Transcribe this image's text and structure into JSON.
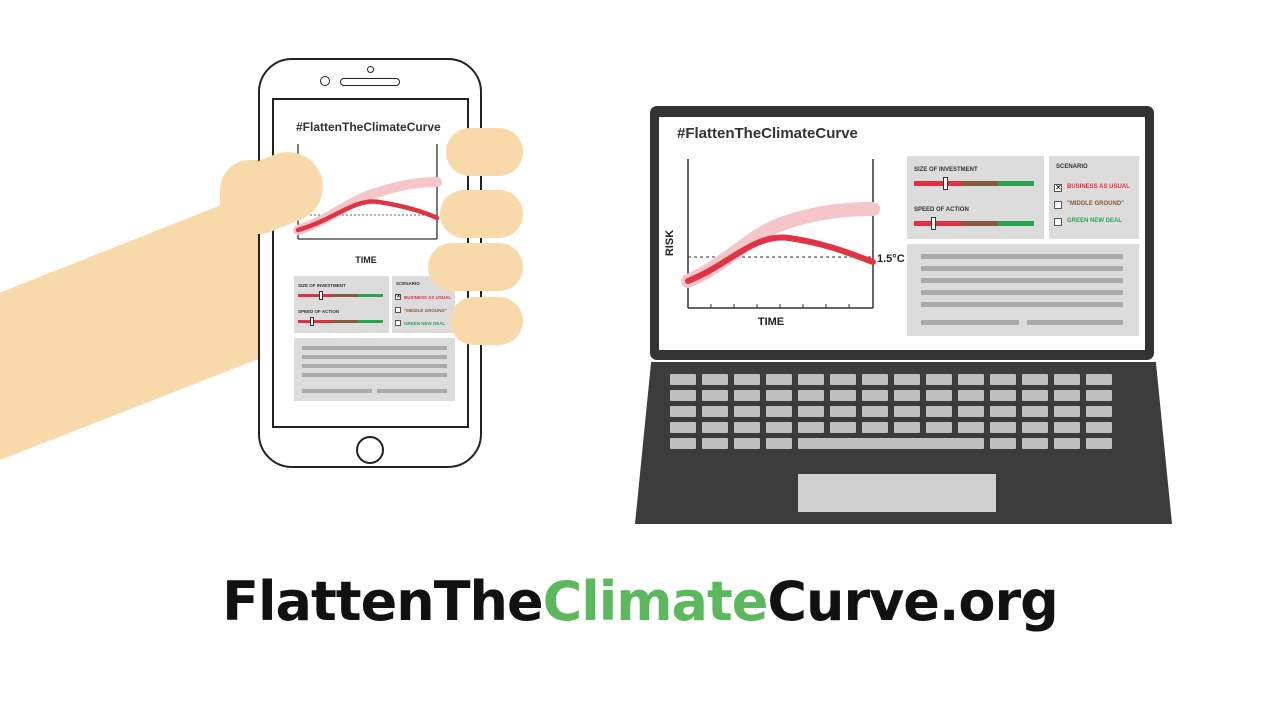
{
  "hashtag": "#FlattenTheClimateCurve",
  "chart": {
    "x_label": "TIME",
    "y_label": "RISK",
    "threshold_label": "1.5°C"
  },
  "controls": {
    "investment_label": "SIZE OF INVESTMENT",
    "speed_label": "SPEED OF ACTION",
    "slider_colors": [
      "#e0303f",
      "#8a5a3c",
      "#2aa44f"
    ],
    "investment_level": 0.3,
    "speed_level": 0.2
  },
  "scenario": {
    "title": "SCENARIO",
    "options": [
      {
        "label": "BUSINESS AS USUAL",
        "checked": true,
        "color": "#e0303f"
      },
      {
        "label": "\"MIDDLE GROUND\"",
        "checked": false,
        "color": "#8a5a3c"
      },
      {
        "label": "GREEN NEW DEAL",
        "checked": false,
        "color": "#2aa44f"
      }
    ]
  },
  "url": {
    "part1": "FlattenThe",
    "part2": "Climate",
    "part3": "Curve.org"
  },
  "colors": {
    "curve": "#e03444",
    "curve_faded": "#f4c6c9",
    "skin": "#f8d9a9",
    "accent_green": "#5cb85c"
  }
}
